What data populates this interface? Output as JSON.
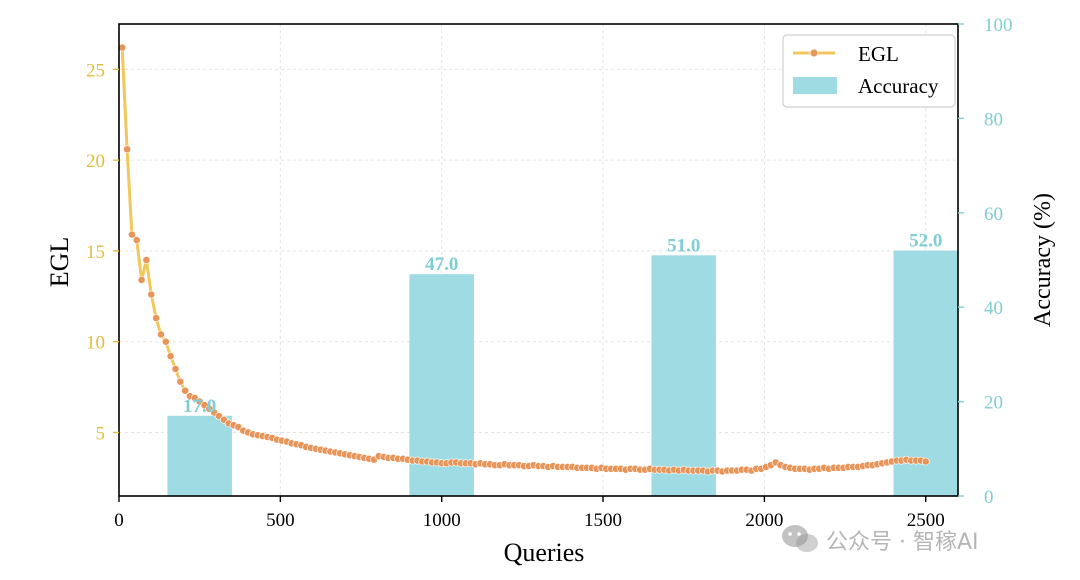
{
  "chart_data": {
    "type": "line+bar",
    "xlabel": "Queries",
    "ylabel_left": "EGL",
    "ylabel_right": "Accuracy (%)",
    "xlim": [
      0,
      2600
    ],
    "ylim_left": [
      1.5,
      27.5
    ],
    "ylim_right": [
      0,
      100
    ],
    "x_ticks": [
      0,
      500,
      1000,
      1500,
      2000,
      2500
    ],
    "y_left_ticks": [
      5,
      10,
      15,
      20,
      25
    ],
    "y_right_ticks": [
      0,
      20,
      40,
      60,
      80,
      100
    ],
    "grid": true,
    "legend_position": "top-right",
    "colors": {
      "egl_line": "#f2c75c",
      "egl_marker": "#e8955a",
      "accuracy_bar": "#9fdbe3",
      "left_axis": "#e3bd3a",
      "right_axis": "#7fcdd5",
      "bar_label": "#7fcdd5"
    },
    "series": [
      {
        "name": "EGL",
        "kind": "line",
        "axis": "left",
        "x": [
          10,
          25,
          40,
          55,
          70,
          85,
          100,
          115,
          130,
          145,
          160,
          175,
          190,
          205,
          220,
          235,
          250,
          265,
          280,
          295,
          310,
          325,
          340,
          355,
          370,
          385,
          400,
          415,
          430,
          445,
          460,
          475,
          490,
          505,
          520,
          535,
          550,
          565,
          580,
          595,
          610,
          625,
          640,
          655,
          670,
          685,
          700,
          715,
          730,
          745,
          760,
          775,
          790,
          805,
          820,
          835,
          850,
          865,
          880,
          895,
          910,
          925,
          940,
          955,
          970,
          985,
          1000,
          1015,
          1030,
          1045,
          1060,
          1075,
          1090,
          1105,
          1120,
          1135,
          1150,
          1165,
          1180,
          1195,
          1210,
          1225,
          1240,
          1255,
          1270,
          1285,
          1300,
          1315,
          1330,
          1345,
          1360,
          1375,
          1390,
          1405,
          1420,
          1435,
          1450,
          1465,
          1480,
          1495,
          1510,
          1525,
          1540,
          1555,
          1570,
          1585,
          1600,
          1615,
          1630,
          1645,
          1660,
          1675,
          1690,
          1705,
          1720,
          1735,
          1750,
          1765,
          1780,
          1795,
          1810,
          1825,
          1840,
          1855,
          1870,
          1885,
          1900,
          1915,
          1930,
          1945,
          1960,
          1975,
          1990,
          2005,
          2020,
          2035,
          2050,
          2065,
          2080,
          2095,
          2110,
          2125,
          2140,
          2155,
          2170,
          2185,
          2200,
          2215,
          2230,
          2245,
          2260,
          2275,
          2290,
          2305,
          2320,
          2335,
          2350,
          2365,
          2380,
          2395,
          2410,
          2425,
          2440,
          2455,
          2470,
          2485,
          2500
        ],
        "y": [
          26.2,
          20.6,
          15.9,
          15.6,
          13.4,
          14.5,
          12.6,
          11.3,
          10.4,
          10.0,
          9.2,
          8.5,
          7.8,
          7.3,
          7.0,
          6.9,
          6.7,
          6.5,
          6.3,
          6.1,
          5.9,
          5.7,
          5.5,
          5.4,
          5.3,
          5.1,
          5.0,
          4.9,
          4.85,
          4.8,
          4.75,
          4.7,
          4.6,
          4.55,
          4.5,
          4.4,
          4.35,
          4.3,
          4.2,
          4.15,
          4.1,
          4.05,
          4.0,
          3.95,
          3.9,
          3.85,
          3.8,
          3.75,
          3.7,
          3.65,
          3.6,
          3.55,
          3.5,
          3.7,
          3.65,
          3.6,
          3.6,
          3.55,
          3.55,
          3.5,
          3.45,
          3.45,
          3.4,
          3.4,
          3.35,
          3.35,
          3.3,
          3.3,
          3.35,
          3.35,
          3.3,
          3.3,
          3.3,
          3.25,
          3.3,
          3.25,
          3.25,
          3.2,
          3.2,
          3.25,
          3.2,
          3.2,
          3.2,
          3.15,
          3.15,
          3.2,
          3.15,
          3.15,
          3.1,
          3.15,
          3.1,
          3.1,
          3.1,
          3.1,
          3.05,
          3.05,
          3.05,
          3.05,
          3.0,
          3.05,
          3.0,
          3.0,
          3.0,
          3.0,
          2.95,
          3.0,
          3.0,
          2.95,
          2.95,
          3.0,
          2.95,
          2.95,
          2.95,
          2.9,
          2.95,
          2.9,
          2.95,
          2.9,
          2.9,
          2.9,
          2.9,
          2.85,
          2.9,
          2.9,
          2.85,
          2.9,
          2.9,
          2.9,
          2.95,
          2.95,
          2.9,
          3.0,
          3.0,
          3.1,
          3.2,
          3.35,
          3.2,
          3.1,
          3.05,
          3.0,
          3.0,
          3.0,
          2.95,
          3.0,
          3.0,
          3.05,
          3.0,
          3.05,
          3.05,
          3.05,
          3.1,
          3.1,
          3.1,
          3.15,
          3.2,
          3.2,
          3.25,
          3.3,
          3.35,
          3.4,
          3.45,
          3.45,
          3.5,
          3.45,
          3.45,
          3.45,
          3.4
        ]
      },
      {
        "name": "Accuracy",
        "kind": "bar",
        "axis": "right",
        "x": [
          250,
          1000,
          1750,
          2500
        ],
        "width": 200,
        "values": [
          17.0,
          47.0,
          51.0,
          52.0
        ],
        "labels": [
          "17.0",
          "47.0",
          "51.0",
          "52.0"
        ]
      }
    ],
    "legend": [
      "EGL",
      "Accuracy"
    ]
  },
  "watermark": {
    "text": "公众号 · 智稼AI"
  }
}
